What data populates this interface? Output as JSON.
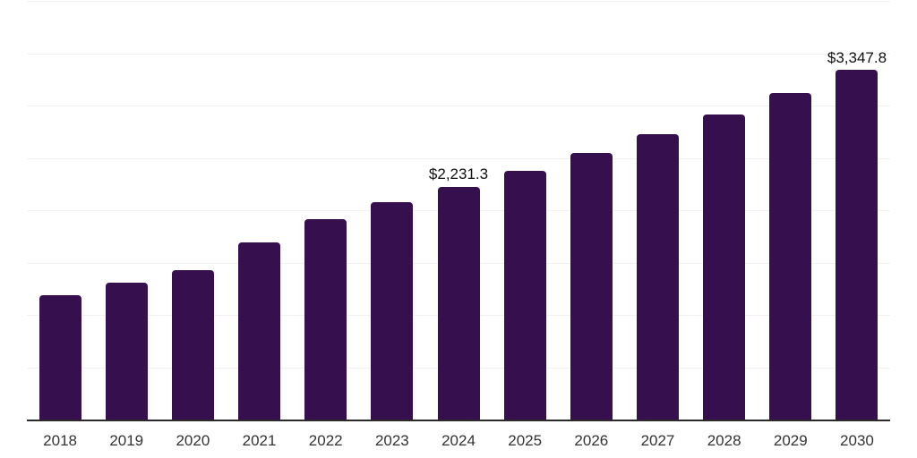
{
  "chart_data": {
    "type": "bar",
    "title": "",
    "xlabel": "",
    "ylabel": "",
    "categories": [
      "2018",
      "2019",
      "2020",
      "2021",
      "2022",
      "2023",
      "2024",
      "2025",
      "2026",
      "2027",
      "2028",
      "2029",
      "2030"
    ],
    "values": [
      1193,
      1318,
      1434,
      1697,
      1922,
      2089,
      2231.3,
      2387.5,
      2554.6,
      2733.4,
      2924.7,
      3129.5,
      3347.8
    ],
    "data_labels": {
      "2024": "$2,231.3",
      "2030": "$3,347.8"
    },
    "ylim": [
      0,
      4000
    ],
    "gridline_step": 500,
    "grid_visible": true,
    "y_axis_labels_visible": false,
    "legend_visible": false
  },
  "colors": {
    "background": "#ffffff",
    "bar": "#36104E",
    "grid": "#f1f1f1",
    "axis": "#2b2b2b",
    "value_label": "#111111",
    "tick_label": "#333333"
  }
}
